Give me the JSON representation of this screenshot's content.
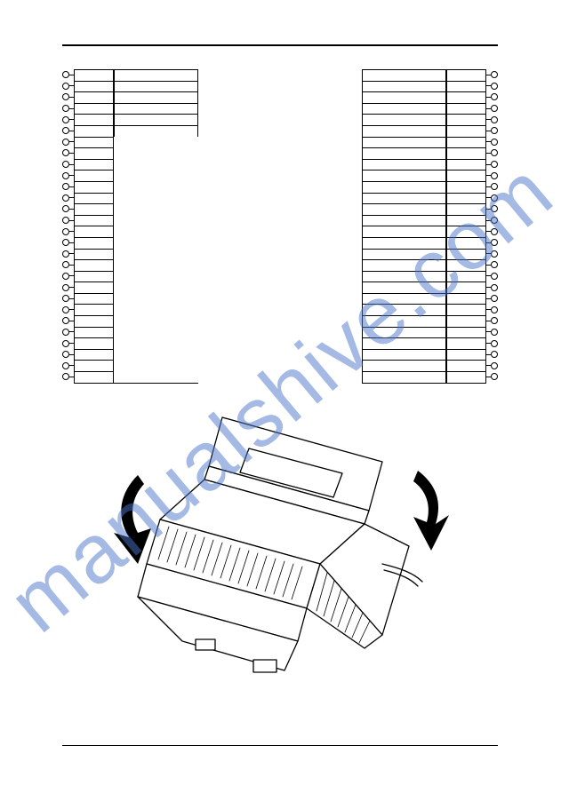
{
  "watermark_text": "manualshive.com",
  "watermark_color": "#4a76c9",
  "left_block": {
    "rows": [
      {
        "pin": "",
        "label": "",
        "wide": true
      },
      {
        "pin": "",
        "label": "",
        "wide": true
      },
      {
        "pin": "",
        "label": "",
        "wide": true
      },
      {
        "pin": "",
        "label": "",
        "wide": true
      },
      {
        "pin": "",
        "label": "",
        "wide": true
      },
      {
        "pin": "",
        "label": "",
        "wide": true
      },
      {
        "pin": "",
        "label": "",
        "wide": false
      },
      {
        "pin": "",
        "label": "",
        "wide": false
      },
      {
        "pin": "",
        "label": "",
        "wide": false
      },
      {
        "pin": "",
        "label": "",
        "wide": false
      },
      {
        "pin": "",
        "label": "",
        "wide": false
      },
      {
        "pin": "",
        "label": "",
        "wide": false
      },
      {
        "pin": "",
        "label": "",
        "wide": false
      },
      {
        "pin": "",
        "label": "",
        "wide": false
      },
      {
        "pin": "",
        "label": "",
        "wide": false
      },
      {
        "pin": "",
        "label": "",
        "wide": false
      },
      {
        "pin": "",
        "label": "",
        "wide": false
      },
      {
        "pin": "",
        "label": "",
        "wide": false
      },
      {
        "pin": "",
        "label": "",
        "wide": false
      },
      {
        "pin": "",
        "label": "",
        "wide": false
      },
      {
        "pin": "",
        "label": "",
        "wide": false
      },
      {
        "pin": "",
        "label": "",
        "wide": false
      },
      {
        "pin": "",
        "label": "",
        "wide": false
      },
      {
        "pin": "",
        "label": "",
        "wide": false
      },
      {
        "pin": "",
        "label": "",
        "wide": false
      },
      {
        "pin": "",
        "label": "",
        "wide": false
      },
      {
        "pin": "",
        "label": "",
        "wide": false
      },
      {
        "pin": "",
        "label": "",
        "wide": false
      }
    ]
  },
  "right_block": {
    "rows": [
      {
        "pin": "",
        "label": "",
        "wide": true
      },
      {
        "pin": "",
        "label": "",
        "wide": true
      },
      {
        "pin": "",
        "label": "",
        "wide": true
      },
      {
        "pin": "",
        "label": "",
        "wide": true
      },
      {
        "pin": "",
        "label": "",
        "wide": true
      },
      {
        "pin": "",
        "label": "",
        "wide": true
      },
      {
        "pin": "",
        "label": "",
        "wide": true
      },
      {
        "pin": "",
        "label": "",
        "wide": true
      },
      {
        "pin": "",
        "label": "",
        "wide": true
      },
      {
        "pin": "",
        "label": "",
        "wide": true
      },
      {
        "pin": "",
        "label": "",
        "wide": true
      },
      {
        "pin": "",
        "label": "",
        "wide": true
      },
      {
        "pin": "",
        "label": "",
        "wide": true
      },
      {
        "pin": "",
        "label": "",
        "wide": true
      },
      {
        "pin": "",
        "label": "",
        "wide": true
      },
      {
        "pin": "",
        "label": "",
        "wide": true
      },
      {
        "pin": "",
        "label": "",
        "wide": true
      },
      {
        "pin": "",
        "label": "",
        "wide": true
      },
      {
        "pin": "",
        "label": "",
        "wide": true
      },
      {
        "pin": "",
        "label": "",
        "wide": true
      },
      {
        "pin": "",
        "label": "",
        "wide": true
      },
      {
        "pin": "",
        "label": "",
        "wide": true
      },
      {
        "pin": "",
        "label": "",
        "wide": true
      },
      {
        "pin": "",
        "label": "",
        "wide": true
      },
      {
        "pin": "",
        "label": "",
        "wide": true
      },
      {
        "pin": "",
        "label": "",
        "wide": true
      },
      {
        "pin": "",
        "label": "",
        "wide": true
      },
      {
        "pin": "",
        "label": "",
        "wide": true
      }
    ]
  },
  "device": {
    "stroke": "#000000",
    "fill": "#ffffff",
    "arrow_fill": "#000000"
  }
}
